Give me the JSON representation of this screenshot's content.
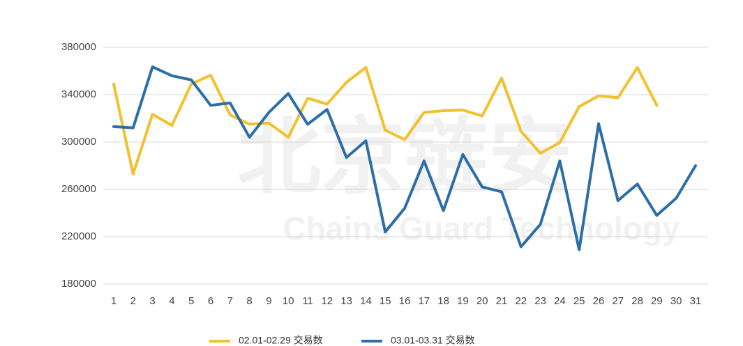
{
  "chart_data": {
    "type": "line",
    "watermark": [
      "北京链安",
      "Chains Guard Technology"
    ],
    "categories": [
      "1",
      "2",
      "3",
      "4",
      "5",
      "6",
      "7",
      "8",
      "9",
      "10",
      "11",
      "12",
      "13",
      "14",
      "15",
      "16",
      "17",
      "18",
      "19",
      "20",
      "21",
      "22",
      "23",
      "24",
      "25",
      "26",
      "27",
      "28",
      "29",
      "30",
      "31"
    ],
    "series": [
      {
        "name": "02.01-02.29 交易数",
        "color": "#f2c12e",
        "values": [
          349000,
          273000,
          323500,
          314000,
          349000,
          356500,
          323000,
          315000,
          316000,
          304000,
          337000,
          332000,
          350500,
          363000,
          310000,
          302000,
          325000,
          326500,
          327000,
          322000,
          354000,
          309000,
          290500,
          299500,
          330000,
          339000,
          337500,
          363000,
          331000,
          null,
          null
        ]
      },
      {
        "name": "03.01-03.31 交易数",
        "color": "#2e6ea6",
        "values": [
          313000,
          312000,
          363500,
          356000,
          352500,
          331000,
          333000,
          304000,
          325000,
          341000,
          315000,
          327500,
          287000,
          301000,
          224000,
          244000,
          284000,
          242000,
          289500,
          262000,
          258000,
          211500,
          230500,
          284000,
          209000,
          315500,
          250500,
          264500,
          238000,
          252500,
          280000
        ]
      }
    ],
    "ylim": [
      180000,
      380000
    ],
    "yticks": [
      180000,
      220000,
      260000,
      300000,
      340000,
      380000
    ],
    "grid": true,
    "legend": "bottom"
  }
}
